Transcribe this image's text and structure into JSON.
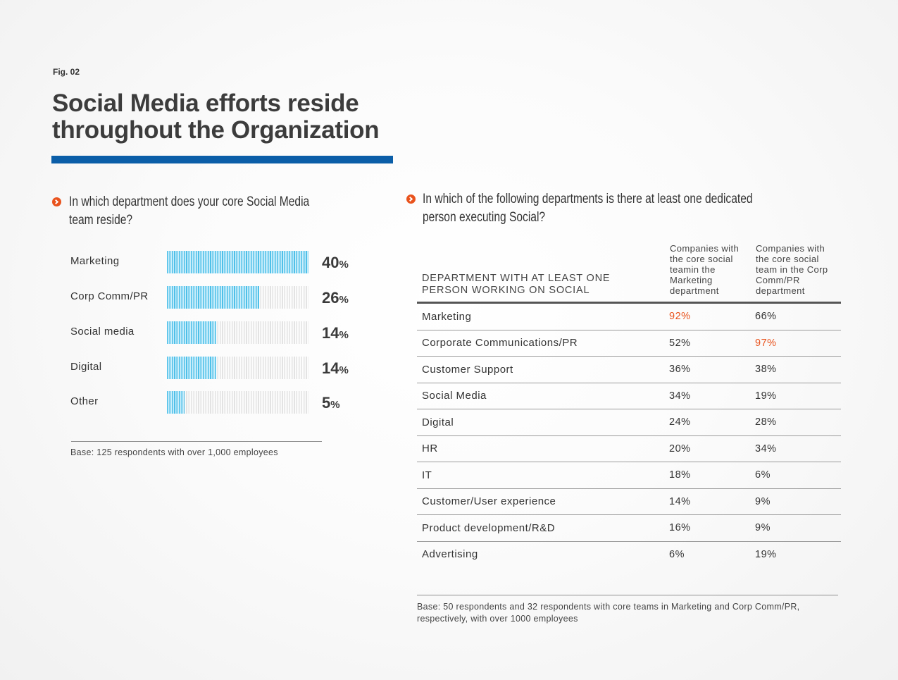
{
  "fig_label": "Fig. 02",
  "title_line1": "Social Media efforts reside",
  "title_line2": "throughout the Organization",
  "accent_color": "#0b5ea8",
  "highlight_color": "#e9531d",
  "left_question_line1": "In which department does your core Social Media",
  "left_question_line2": "team reside?",
  "right_question_line1": "In which of the following departments is there at least one dedicated",
  "right_question_line2": "person executing Social?",
  "left_base": "Base: 125 respondents with over 1,000 employees",
  "right_base_line1": "Base: 50 respondents and 32 respondents with core teams in Marketing and Corp Comm/PR,",
  "right_base_line2": "respectively, with over 1000 employees",
  "chart_data": [
    {
      "type": "bar",
      "orientation": "horizontal",
      "title": "In which department does your core Social Media team reside?",
      "categories": [
        "Marketing",
        "Corp Comm/PR",
        "Social media",
        "Digital",
        "Other"
      ],
      "values": [
        40,
        26,
        14,
        14,
        5
      ],
      "display": [
        {
          "num": "40",
          "unit": "%"
        },
        {
          "num": "26",
          "unit": "%"
        },
        {
          "num": "14",
          "unit": "%"
        },
        {
          "num": "14",
          "unit": "%"
        },
        {
          "num": "5",
          "unit": "%"
        }
      ],
      "unit": "%",
      "xlim": [
        0,
        100
      ]
    },
    {
      "type": "table",
      "title": "In which of the following departments is there at least one dedicated person executing Social?",
      "columns": [
        "DEPARTMENT WITH AT LEAST ONE\nPERSON WORKING ON SOCIAL",
        "Companies with\nthe core social\nteamin the\nMarketing\ndepartment",
        "Companies with\nthe core social\nteam in the Corp\nComm/PR\ndepartment"
      ],
      "rows": [
        [
          "Marketing",
          "92%",
          "66%"
        ],
        [
          "Corporate Communications/PR",
          "52%",
          "97%"
        ],
        [
          "Customer Support",
          "36%",
          "38%"
        ],
        [
          "Social Media",
          "34%",
          "19%"
        ],
        [
          "Digital",
          "24%",
          "28%"
        ],
        [
          "HR",
          "20%",
          "34%"
        ],
        [
          "IT",
          "18%",
          "6%"
        ],
        [
          "Customer/User experience",
          "14%",
          "9%"
        ],
        [
          "Product development/R&D",
          "16%",
          "9%"
        ],
        [
          "Advertising",
          "6%",
          "19%"
        ]
      ],
      "highlighted_cells": [
        [
          0,
          1
        ],
        [
          1,
          2
        ]
      ]
    }
  ]
}
